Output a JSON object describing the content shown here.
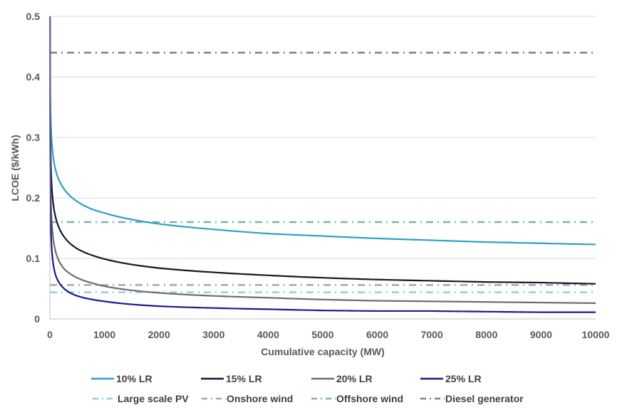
{
  "chart_data": {
    "type": "line",
    "title": "",
    "xlabel": "Cumulative capacity (MW)",
    "ylabel": "LCOE ($/kWh)",
    "xlim": [
      0,
      10000
    ],
    "ylim": [
      0,
      0.5
    ],
    "x_ticks": [
      "0",
      "1000",
      "2000",
      "3000",
      "4000",
      "5000",
      "6000",
      "7000",
      "8000",
      "9000",
      "10000"
    ],
    "x_tick_values": [
      0,
      1000,
      2000,
      3000,
      4000,
      5000,
      6000,
      7000,
      8000,
      9000,
      10000
    ],
    "y_ticks": [
      "0",
      "0.1",
      "0.2",
      "0.3",
      "0.4",
      "0.5"
    ],
    "y_tick_values": [
      0,
      0.1,
      0.2,
      0.3,
      0.4,
      0.5
    ],
    "grid": "horizontal",
    "legend_position": "bottom",
    "series": [
      {
        "name": "10% LR",
        "color": "#2E9FC4",
        "style": "solid",
        "x": [
          1,
          10,
          50,
          100,
          250,
          500,
          780,
          1000,
          2000,
          3000,
          4000,
          5000,
          6000,
          7000,
          8000,
          9000,
          10000
        ],
        "values": [
          0.5,
          0.352,
          0.276,
          0.248,
          0.216,
          0.194,
          0.181,
          0.175,
          0.157,
          0.148,
          0.141,
          0.137,
          0.133,
          0.13,
          0.127,
          0.125,
          0.123
        ]
      },
      {
        "name": "15% LR",
        "color": "#0D1B2A",
        "style": "solid",
        "x": [
          1,
          10,
          50,
          100,
          250,
          500,
          780,
          1000,
          2000,
          3000,
          4000,
          5000,
          6000,
          7000,
          8000,
          9000,
          10000
        ],
        "values": [
          0.5,
          0.292,
          0.2,
          0.17,
          0.137,
          0.116,
          0.105,
          0.099,
          0.084,
          0.077,
          0.072,
          0.068,
          0.065,
          0.063,
          0.061,
          0.06,
          0.058
        ]
      },
      {
        "name": "20% LR",
        "color": "#6D6D6D",
        "style": "solid",
        "x": [
          1,
          10,
          50,
          100,
          250,
          500,
          780,
          1000,
          2000,
          3000,
          4000,
          5000,
          6000,
          7000,
          8000,
          9000,
          10000
        ],
        "values": [
          0.5,
          0.238,
          0.142,
          0.113,
          0.084,
          0.068,
          0.059,
          0.054,
          0.043,
          0.038,
          0.035,
          0.032,
          0.03,
          0.029,
          0.028,
          0.027,
          0.026
        ]
      },
      {
        "name": "25% LR",
        "color": "#1F1A8C",
        "style": "solid",
        "x": [
          1,
          10,
          50,
          100,
          250,
          500,
          780,
          1000,
          2000,
          3000,
          4000,
          5000,
          6000,
          7000,
          8000,
          9000,
          10000
        ],
        "values": [
          0.5,
          0.192,
          0.099,
          0.074,
          0.051,
          0.038,
          0.032,
          0.029,
          0.021,
          0.018,
          0.016,
          0.014,
          0.013,
          0.013,
          0.012,
          0.011,
          0.011
        ]
      },
      {
        "name": "Large scale PV",
        "color": "#8FD0DF",
        "style": "dash-dot",
        "x": [
          0,
          10000
        ],
        "values": [
          0.044,
          0.044
        ]
      },
      {
        "name": "Onshore wind",
        "color": "#A8A8A8",
        "style": "dash-dot",
        "x": [
          0,
          10000
        ],
        "values": [
          0.056,
          0.056
        ]
      },
      {
        "name": "Offshore wind",
        "color": "#7FAFAF",
        "style": "dash-dot",
        "x": [
          0,
          10000
        ],
        "values": [
          0.16,
          0.16
        ]
      },
      {
        "name": "Diesel generator",
        "color": "#808080",
        "style": "dash-dot",
        "x": [
          0,
          10000
        ],
        "values": [
          0.44,
          0.44
        ]
      }
    ]
  }
}
